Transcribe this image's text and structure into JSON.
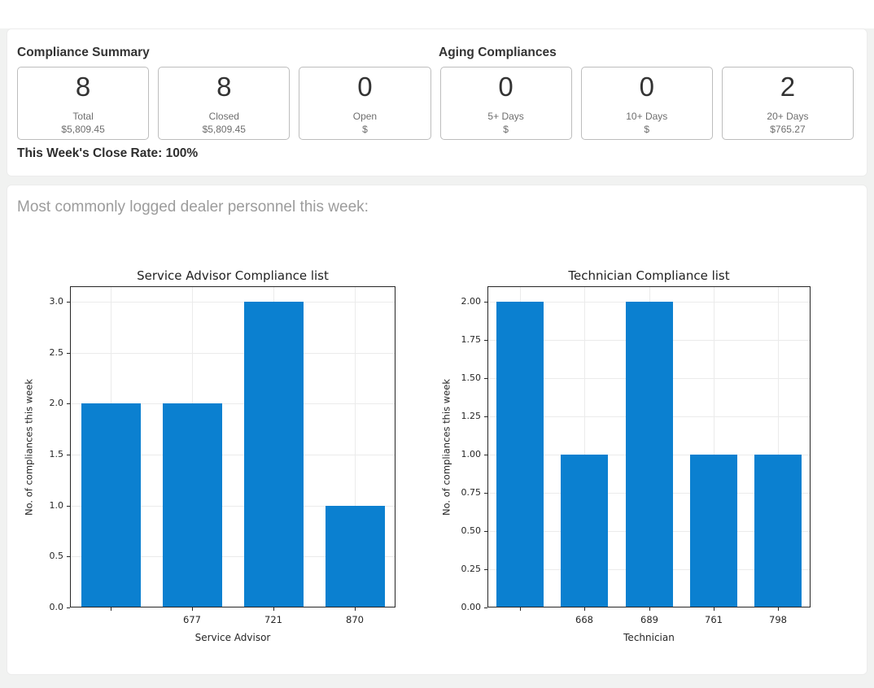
{
  "summary": {
    "compliance_title": "Compliance Summary",
    "aging_title": "Aging Compliances",
    "close_rate": "This Week's Close Rate: 100%",
    "cards": [
      {
        "value": "8",
        "label": "Total",
        "amount": "$5,809.45"
      },
      {
        "value": "8",
        "label": "Closed",
        "amount": "$5,809.45"
      },
      {
        "value": "0",
        "label": "Open",
        "amount": "$"
      },
      {
        "value": "0",
        "label": "5+ Days",
        "amount": "$"
      },
      {
        "value": "0",
        "label": "10+ Days",
        "amount": "$"
      },
      {
        "value": "2",
        "label": "20+ Days",
        "amount": "$765.27"
      }
    ]
  },
  "personnel_heading": "Most commonly logged dealer personnel this week:",
  "colors": {
    "bar_blue": "#0b80d0",
    "page_bg": "#f1f2f1",
    "panel_bg": "#ffffff",
    "axis": "#262626",
    "grid": "#ebebeb",
    "muted_text": "#6e6e6e",
    "heading_gray": "#9c9c9c"
  },
  "chart_data": [
    {
      "type": "bar",
      "title": "Service Advisor Compliance list",
      "xlabel": "Service Advisor",
      "ylabel": "No. of compliances this week",
      "categories": [
        "",
        "677",
        "721",
        "870"
      ],
      "values": [
        2,
        2,
        3,
        1
      ],
      "yticks": [
        0.0,
        0.5,
        1.0,
        1.5,
        2.0,
        2.5,
        3.0
      ],
      "ytick_labels": [
        "0.0",
        "0.5",
        "1.0",
        "1.5",
        "2.0",
        "2.5",
        "3.0"
      ],
      "ylim": [
        0,
        3.15
      ],
      "grid": true,
      "legend": "none",
      "bar_color": "#0b80d0"
    },
    {
      "type": "bar",
      "title": "Technician Compliance list",
      "xlabel": "Technician",
      "ylabel": "No. of compliances this week",
      "categories": [
        "",
        "668",
        "689",
        "761",
        "798"
      ],
      "values": [
        2,
        1,
        2,
        1,
        1
      ],
      "yticks": [
        0.0,
        0.25,
        0.5,
        0.75,
        1.0,
        1.25,
        1.5,
        1.75,
        2.0
      ],
      "ytick_labels": [
        "0.00",
        "0.25",
        "0.50",
        "0.75",
        "1.00",
        "1.25",
        "1.50",
        "1.75",
        "2.00"
      ],
      "ylim": [
        0,
        2.1
      ],
      "grid": true,
      "legend": "none",
      "bar_color": "#0b80d0"
    }
  ]
}
